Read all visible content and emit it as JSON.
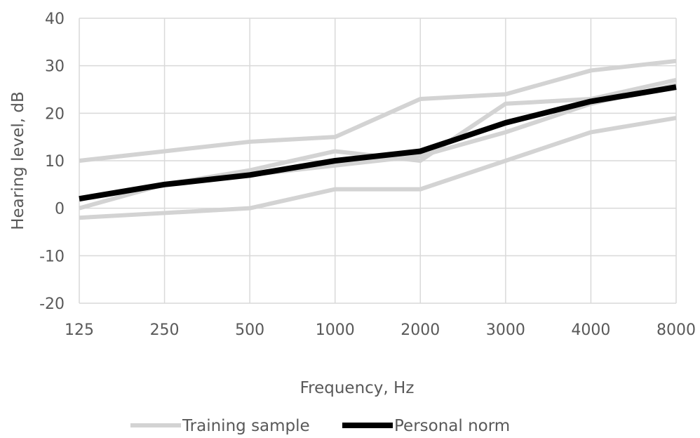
{
  "chart_data": {
    "type": "line",
    "xlabel": "Frequency, Hz",
    "ylabel": "Hearing level, dB",
    "categories": [
      "125",
      "250",
      "500",
      "1000",
      "2000",
      "3000",
      "4000",
      "8000"
    ],
    "ylim": [
      -20,
      40
    ],
    "yticks": [
      "40",
      "30",
      "20",
      "10",
      "0",
      "-10",
      "-20"
    ],
    "grid": true,
    "legend_position": "bottom",
    "series": [
      {
        "name": "Training sample",
        "color": "#d3d3d3",
        "values": [
          10,
          12,
          14,
          15,
          23,
          24,
          29,
          31
        ]
      },
      {
        "name": "",
        "color": "#d3d3d3",
        "values": [
          0,
          5,
          8,
          12,
          10,
          22,
          23,
          27
        ]
      },
      {
        "name": "",
        "color": "#d3d3d3",
        "values": [
          -2,
          -1,
          0,
          4,
          4,
          10,
          16,
          19
        ]
      },
      {
        "name": "",
        "color": "#d3d3d3",
        "values": [
          2,
          5,
          7,
          9,
          11,
          16,
          22,
          26
        ]
      },
      {
        "name": "Personal norm",
        "color": "#000000",
        "values": [
          2,
          5,
          7,
          10,
          12,
          18,
          22.5,
          25.5
        ]
      }
    ],
    "legend": [
      {
        "label": "Training sample",
        "color": "#d3d3d3"
      },
      {
        "label": "Personal norm",
        "color": "#000000"
      }
    ]
  }
}
